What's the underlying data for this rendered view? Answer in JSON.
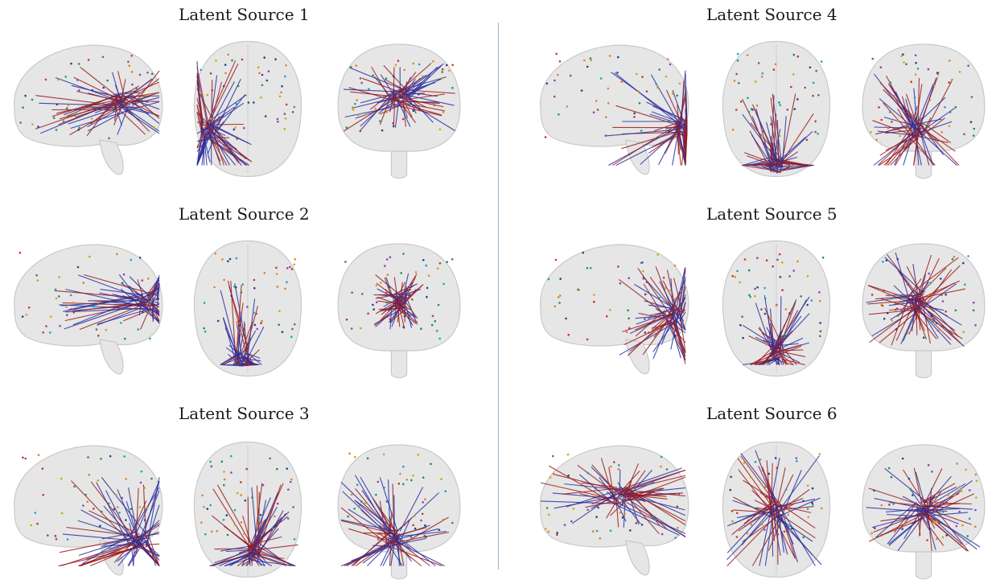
{
  "panels": [
    {
      "title": "Latent Source 1"
    },
    {
      "title": "Latent Source 2"
    },
    {
      "title": "Latent Source 3"
    },
    {
      "title": "Latent Source 4"
    },
    {
      "title": "Latent Source 5"
    },
    {
      "title": "Latent Source 6"
    }
  ],
  "views": [
    "sagittal",
    "axial",
    "coronal"
  ],
  "colors": {
    "positive_connection": "#9b1b1b",
    "negative_connection": "#2a2f9e",
    "brain_fill": "#e6e6e6",
    "brain_outline": "#c9c9c9",
    "divider": "#9fb6c9"
  }
}
